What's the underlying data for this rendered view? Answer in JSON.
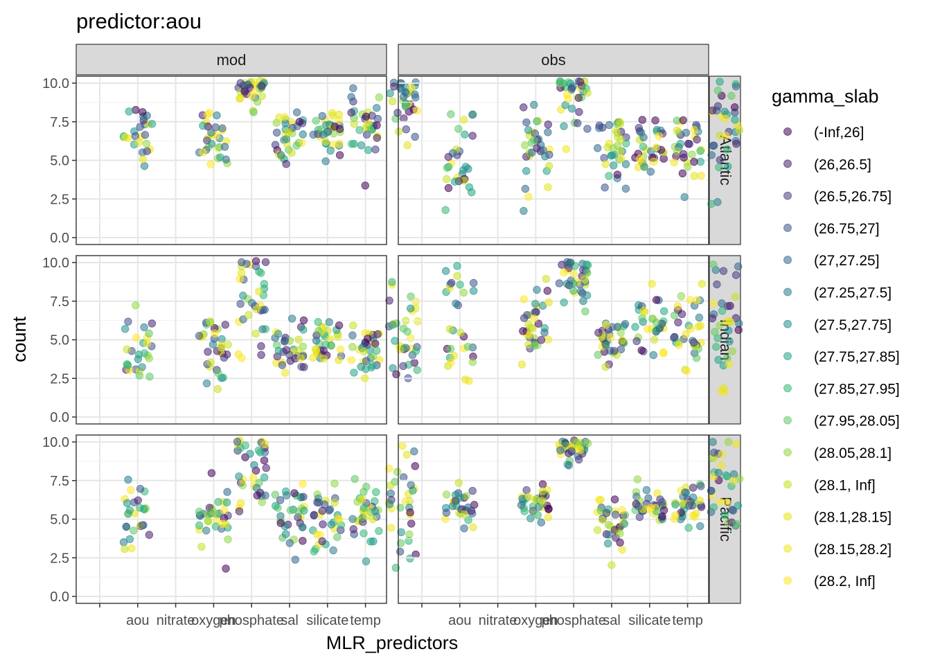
{
  "chart_data": {
    "type": "scatter",
    "title": "predictor:aou",
    "xlabel": "MLR_predictors",
    "ylabel": "count",
    "ylim": [
      0,
      10
    ],
    "y_ticks": [
      "0.0",
      "2.5",
      "5.0",
      "7.5",
      "10.0"
    ],
    "x_categories": [
      "",
      "aou",
      "nitrate",
      "oxygen",
      "phosphate",
      "sal",
      "silicate",
      "temp"
    ],
    "columns": [
      "mod",
      "obs"
    ],
    "rows": [
      "Atlantic",
      "Indian",
      "Pacific"
    ],
    "legend": {
      "title": "gamma_slab",
      "placement": "right",
      "entries": [
        {
          "label": "(-Inf,26]",
          "color": "#440154"
        },
        {
          "label": "(26,26.5]",
          "color": "#481F70"
        },
        {
          "label": "(26.5,26.75]",
          "color": "#443A83"
        },
        {
          "label": "(26.75,27]",
          "color": "#3B528B"
        },
        {
          "label": "(27,27.25]",
          "color": "#31688E"
        },
        {
          "label": "(27.25,27.5]",
          "color": "#287C8E"
        },
        {
          "label": "(27.5,27.75]",
          "color": "#21908C"
        },
        {
          "label": "(27.75,27.85]",
          "color": "#20A486"
        },
        {
          "label": "(27.85,27.95]",
          "color": "#35B779"
        },
        {
          "label": "(27.95,28.05]",
          "color": "#5EC962"
        },
        {
          "label": "(28.05,28.1]",
          "color": "#8FD744"
        },
        {
          "label": "(28.1, Inf]",
          "color": "#C8E020"
        },
        {
          "label": "(28.1,28.15]",
          "color": "#E4E419"
        },
        {
          "label": "(28.15,28.2]",
          "color": "#F1E51D"
        },
        {
          "label": "(28.2, Inf]",
          "color": "#FDE725"
        }
      ]
    },
    "point_opacity": 0.55,
    "grid": true,
    "panels": [
      {
        "column": "mod",
        "row": "Atlantic",
        "clusters": [
          {
            "x": 1,
            "mean": 6.9,
            "sd": 1.1,
            "n": 26,
            "tone": "mixed"
          },
          {
            "x": 3,
            "mean": 6.6,
            "sd": 0.9,
            "n": 30,
            "tone": "mixed"
          },
          {
            "x": 4,
            "mean": 9.8,
            "sd": 0.9,
            "n": 34,
            "tone": "mixed"
          },
          {
            "x": 5,
            "mean": 6.6,
            "sd": 0.8,
            "n": 34,
            "tone": "mixed"
          },
          {
            "x": 6,
            "mean": 6.9,
            "sd": 0.9,
            "n": 34,
            "tone": "mixed"
          },
          {
            "x": 7,
            "mean": 7.2,
            "sd": 1.1,
            "n": 34,
            "tone": "mixed"
          },
          {
            "x": 8,
            "mean": 8.2,
            "sd": 1.4,
            "n": 34,
            "tone": "mixed"
          }
        ]
      },
      {
        "column": "obs",
        "row": "Atlantic",
        "clusters": [
          {
            "x": 1,
            "mean": 5.2,
            "sd": 1.6,
            "n": 30,
            "tone": "mixed"
          },
          {
            "x": 3,
            "mean": 5.8,
            "sd": 1.2,
            "n": 34,
            "tone": "mixed"
          },
          {
            "x": 4,
            "mean": 9.4,
            "sd": 1.1,
            "n": 34,
            "tone": "mixed"
          },
          {
            "x": 5,
            "mean": 5.9,
            "sd": 1.3,
            "n": 36,
            "tone": "mixed"
          },
          {
            "x": 6,
            "mean": 5.7,
            "sd": 1.2,
            "n": 34,
            "tone": "mixed"
          },
          {
            "x": 7,
            "mean": 5.8,
            "sd": 1.2,
            "n": 34,
            "tone": "mixed"
          },
          {
            "x": 8,
            "mean": 7.4,
            "sd": 2.3,
            "n": 34,
            "tone": "mixed"
          }
        ]
      },
      {
        "column": "mod",
        "row": "Indian",
        "clusters": [
          {
            "x": 1,
            "mean": 4.6,
            "sd": 1.1,
            "n": 28,
            "tone": "mixed"
          },
          {
            "x": 3,
            "mean": 4.6,
            "sd": 1.0,
            "n": 34,
            "tone": "mixed"
          },
          {
            "x": 4,
            "mean": 7.8,
            "sd": 1.9,
            "n": 36,
            "tone": "mixed"
          },
          {
            "x": 5,
            "mean": 4.5,
            "sd": 0.9,
            "n": 34,
            "tone": "mixed"
          },
          {
            "x": 6,
            "mean": 4.9,
            "sd": 0.8,
            "n": 34,
            "tone": "mixed"
          },
          {
            "x": 7,
            "mean": 4.6,
            "sd": 1.0,
            "n": 34,
            "tone": "mixed"
          },
          {
            "x": 8,
            "mean": 5.0,
            "sd": 2.0,
            "n": 34,
            "tone": "mixed"
          }
        ]
      },
      {
        "column": "obs",
        "row": "Indian",
        "clusters": [
          {
            "x": 1,
            "mean": 6.4,
            "sd": 2.1,
            "n": 30,
            "tone": "mixed"
          },
          {
            "x": 3,
            "mean": 5.9,
            "sd": 1.3,
            "n": 34,
            "tone": "mixed"
          },
          {
            "x": 4,
            "mean": 9.0,
            "sd": 1.2,
            "n": 36,
            "tone": "mixed"
          },
          {
            "x": 5,
            "mean": 5.2,
            "sd": 0.8,
            "n": 34,
            "tone": "mixed"
          },
          {
            "x": 6,
            "mean": 6.0,
            "sd": 1.1,
            "n": 34,
            "tone": "mixed"
          },
          {
            "x": 7,
            "mean": 5.9,
            "sd": 1.2,
            "n": 34,
            "tone": "mixed"
          },
          {
            "x": 8,
            "mean": 5.8,
            "sd": 2.1,
            "n": 34,
            "tone": "mixed"
          }
        ]
      },
      {
        "column": "mod",
        "row": "Pacific",
        "clusters": [
          {
            "x": 1,
            "mean": 5.2,
            "sd": 1.1,
            "n": 28,
            "tone": "mixed"
          },
          {
            "x": 3,
            "mean": 5.1,
            "sd": 1.1,
            "n": 34,
            "tone": "mixed"
          },
          {
            "x": 4,
            "mean": 8.6,
            "sd": 1.8,
            "n": 36,
            "tone": "mixed"
          },
          {
            "x": 5,
            "mean": 5.2,
            "sd": 1.0,
            "n": 34,
            "tone": "mixed"
          },
          {
            "x": 6,
            "mean": 5.1,
            "sd": 1.0,
            "n": 34,
            "tone": "mixed"
          },
          {
            "x": 7,
            "mean": 5.2,
            "sd": 1.0,
            "n": 34,
            "tone": "mixed"
          },
          {
            "x": 8,
            "mean": 5.6,
            "sd": 2.2,
            "n": 34,
            "tone": "mixed"
          }
        ]
      },
      {
        "column": "obs",
        "row": "Pacific",
        "clusters": [
          {
            "x": 1,
            "mean": 5.9,
            "sd": 0.7,
            "n": 30,
            "tone": "mixed"
          },
          {
            "x": 3,
            "mean": 6.2,
            "sd": 0.6,
            "n": 34,
            "tone": "mixed"
          },
          {
            "x": 4,
            "mean": 9.8,
            "sd": 0.5,
            "n": 36,
            "tone": "mixed"
          },
          {
            "x": 5,
            "mean": 4.6,
            "sd": 1.0,
            "n": 34,
            "tone": "mixed"
          },
          {
            "x": 6,
            "mean": 5.8,
            "sd": 0.6,
            "n": 34,
            "tone": "mixed"
          },
          {
            "x": 7,
            "mean": 5.9,
            "sd": 0.6,
            "n": 34,
            "tone": "mixed"
          },
          {
            "x": 8,
            "mean": 7.4,
            "sd": 1.8,
            "n": 34,
            "tone": "mixed"
          }
        ]
      }
    ]
  }
}
